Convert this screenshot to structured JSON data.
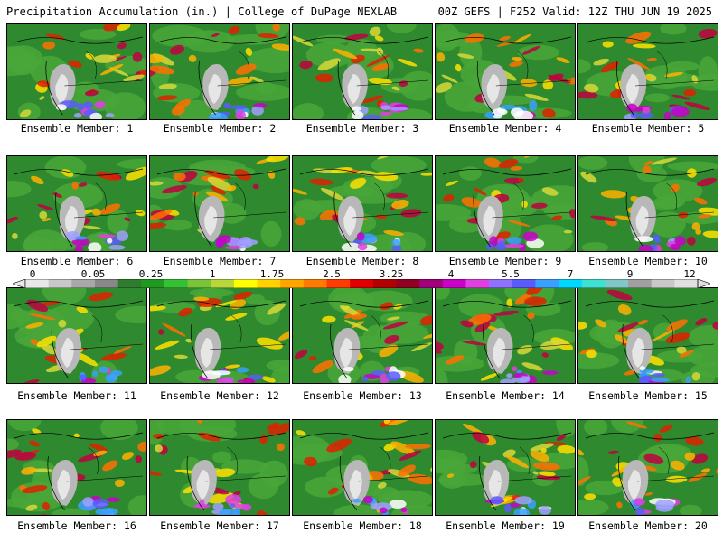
{
  "header": {
    "left": "Precipitation Accumulation (in.) | College of DuPage NEXLAB",
    "right": "00Z GEFS | F252 Valid: 12Z THU JUN 19 2025"
  },
  "legend": {
    "tick_labels": [
      "0",
      "0.05",
      "0.25",
      "1",
      "1.75",
      "2.5",
      "3.25",
      "4",
      "5.5",
      "7",
      "9",
      "12"
    ],
    "colors": [
      "#e8e8e8",
      "#c8c8c8",
      "#a8a8a8",
      "#888888",
      "#2e7d2e",
      "#1f9a1f",
      "#34c234",
      "#7ac43a",
      "#b6d83a",
      "#ffff00",
      "#ffd200",
      "#ffa500",
      "#ff7a00",
      "#ff3c00",
      "#e00000",
      "#b00000",
      "#900020",
      "#a0007a",
      "#c800c8",
      "#e040e0",
      "#9070ff",
      "#5a5aff",
      "#3aa0ff",
      "#00d8ff",
      "#40e0d0",
      "#80c8c8",
      "#a0a0a0",
      "#c8c8c8",
      "#e0e0e0"
    ]
  },
  "members": [
    {
      "label": "Ensemble Member: 1"
    },
    {
      "label": "Ensemble Member: 2"
    },
    {
      "label": "Ensemble Member: 3"
    },
    {
      "label": "Ensemble Member: 4"
    },
    {
      "label": "Ensemble Member: 5"
    },
    {
      "label": "Ensemble Member: 6"
    },
    {
      "label": "Ensemble Member: 7"
    },
    {
      "label": "Ensemble Member: 8"
    },
    {
      "label": "Ensemble Member: 9"
    },
    {
      "label": "Ensemble Member: 10"
    },
    {
      "label": "Ensemble Member: 11"
    },
    {
      "label": "Ensemble Member: 12"
    },
    {
      "label": "Ensemble Member: 13"
    },
    {
      "label": "Ensemble Member: 14"
    },
    {
      "label": "Ensemble Member: 15"
    },
    {
      "label": "Ensemble Member: 16"
    },
    {
      "label": "Ensemble Member: 17"
    },
    {
      "label": "Ensemble Member: 18"
    },
    {
      "label": "Ensemble Member: 19"
    },
    {
      "label": "Ensemble Member: 20"
    }
  ]
}
